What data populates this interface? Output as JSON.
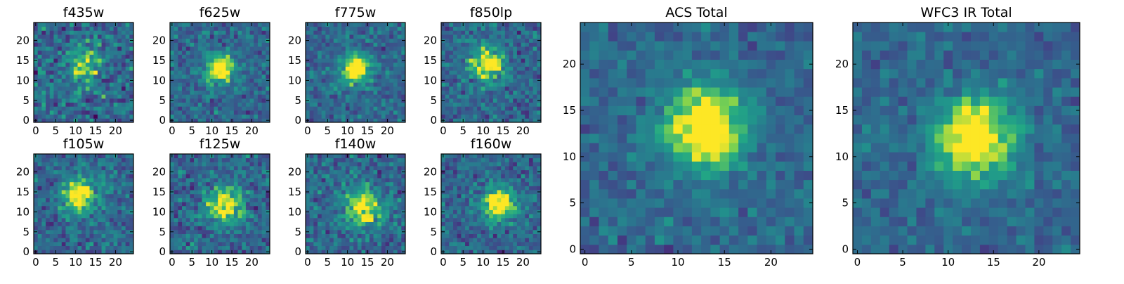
{
  "chart_data": {
    "type": "heatmap",
    "colormap": "viridis",
    "grid_size": 25,
    "panels": [
      {
        "title": "f435w",
        "xticks": [
          0,
          5,
          10,
          15,
          20
        ],
        "yticks": [
          0,
          5,
          10,
          15,
          20
        ],
        "source_center": [
          12,
          14
        ],
        "source_sigma": 3.0,
        "peak": 0.5,
        "noise": 0.55,
        "seed": 11
      },
      {
        "title": "f625w",
        "xticks": [
          0,
          5,
          10,
          15,
          20
        ],
        "yticks": [
          0,
          5,
          10,
          15,
          20
        ],
        "source_center": [
          12,
          13
        ],
        "source_sigma": 2.6,
        "peak": 0.7,
        "noise": 0.4,
        "seed": 23
      },
      {
        "title": "f775w",
        "xticks": [
          0,
          5,
          10,
          15,
          20
        ],
        "yticks": [
          0,
          5,
          10,
          15,
          20
        ],
        "source_center": [
          12,
          13
        ],
        "source_sigma": 2.6,
        "peak": 0.75,
        "noise": 0.38,
        "seed": 37
      },
      {
        "title": "f850lp",
        "xticks": [
          0,
          5,
          10,
          15,
          20
        ],
        "yticks": [
          0,
          5,
          10,
          15,
          20
        ],
        "source_center": [
          11,
          14
        ],
        "source_sigma": 2.8,
        "peak": 0.7,
        "noise": 0.42,
        "seed": 41
      },
      {
        "title": "f105w",
        "xticks": [
          0,
          5,
          10,
          15,
          20
        ],
        "yticks": [
          0,
          5,
          10,
          15,
          20
        ],
        "source_center": [
          11,
          14
        ],
        "source_sigma": 3.0,
        "peak": 0.7,
        "noise": 0.42,
        "seed": 53
      },
      {
        "title": "f125w",
        "xticks": [
          0,
          5,
          10,
          15,
          20
        ],
        "yticks": [
          0,
          5,
          10,
          15,
          20
        ],
        "source_center": [
          13,
          12
        ],
        "source_sigma": 3.2,
        "peak": 0.65,
        "noise": 0.45,
        "seed": 67
      },
      {
        "title": "f140w",
        "xticks": [
          0,
          5,
          10,
          15,
          20
        ],
        "yticks": [
          0,
          5,
          10,
          15,
          20
        ],
        "source_center": [
          14,
          11
        ],
        "source_sigma": 3.4,
        "peak": 0.6,
        "noise": 0.45,
        "seed": 79
      },
      {
        "title": "f160w",
        "xticks": [
          0,
          5,
          10,
          15,
          20
        ],
        "yticks": [
          0,
          5,
          10,
          15,
          20
        ],
        "source_center": [
          14,
          12
        ],
        "source_sigma": 2.8,
        "peak": 0.75,
        "noise": 0.4,
        "seed": 83
      },
      {
        "title": "ACS Total",
        "xticks": [
          0,
          5,
          10,
          15,
          20
        ],
        "yticks": [
          0,
          5,
          10,
          15,
          20
        ],
        "source_center": [
          13,
          13
        ],
        "source_sigma": 3.0,
        "peak": 0.8,
        "noise": 0.3,
        "seed": 97
      },
      {
        "title": "WFC3 IR Total",
        "xticks": [
          0,
          5,
          10,
          15,
          20
        ],
        "yticks": [
          0,
          5,
          10,
          15,
          20
        ],
        "source_center": [
          13,
          12
        ],
        "source_sigma": 3.2,
        "peak": 0.75,
        "noise": 0.28,
        "seed": 101
      }
    ]
  }
}
